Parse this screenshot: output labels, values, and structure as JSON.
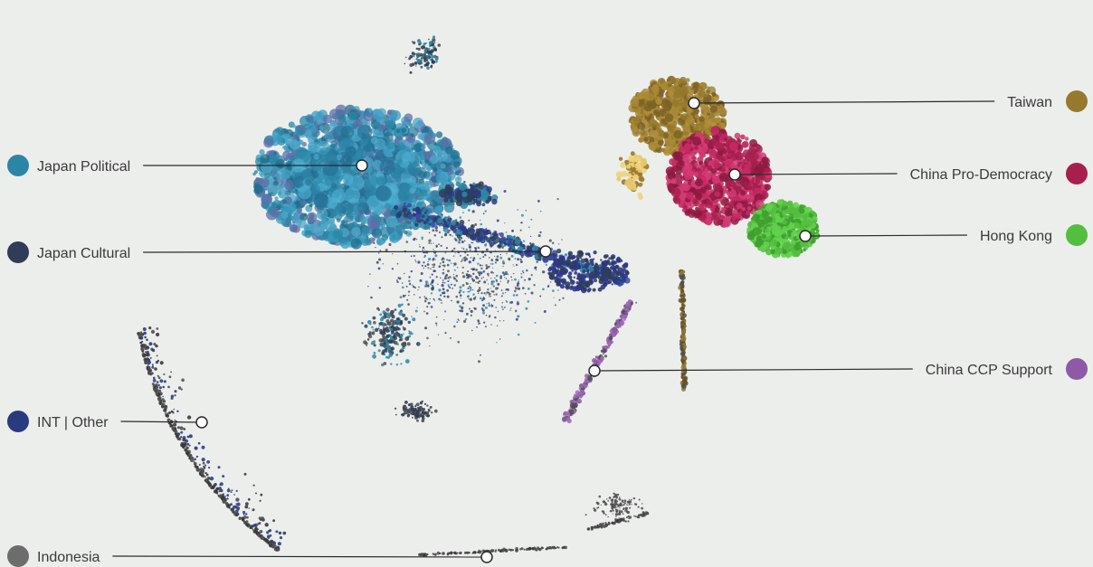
{
  "communities": [
    {
      "key": "japan-political",
      "label": "Japan Political",
      "color": "#2b86a6",
      "side": "left"
    },
    {
      "key": "japan-cultural",
      "label": "Japan Cultural",
      "color": "#2f3d57",
      "side": "left"
    },
    {
      "key": "int-other",
      "label": "INT | Other",
      "color": "#2a3a80",
      "side": "left"
    },
    {
      "key": "indonesia",
      "label": "Indonesia",
      "color": "#6d6d6d",
      "side": "left"
    },
    {
      "key": "taiwan",
      "label": "Taiwan",
      "color": "#97792d",
      "side": "right"
    },
    {
      "key": "china-pro-democracy",
      "label": "China Pro-Democracy",
      "color": "#a7204d",
      "side": "right"
    },
    {
      "key": "hong-kong",
      "label": "Hong Kong",
      "color": "#54be3f",
      "side": "right"
    },
    {
      "key": "china-ccp-support",
      "label": "China CCP Support",
      "color": "#8e5aa8",
      "side": "right"
    }
  ]
}
